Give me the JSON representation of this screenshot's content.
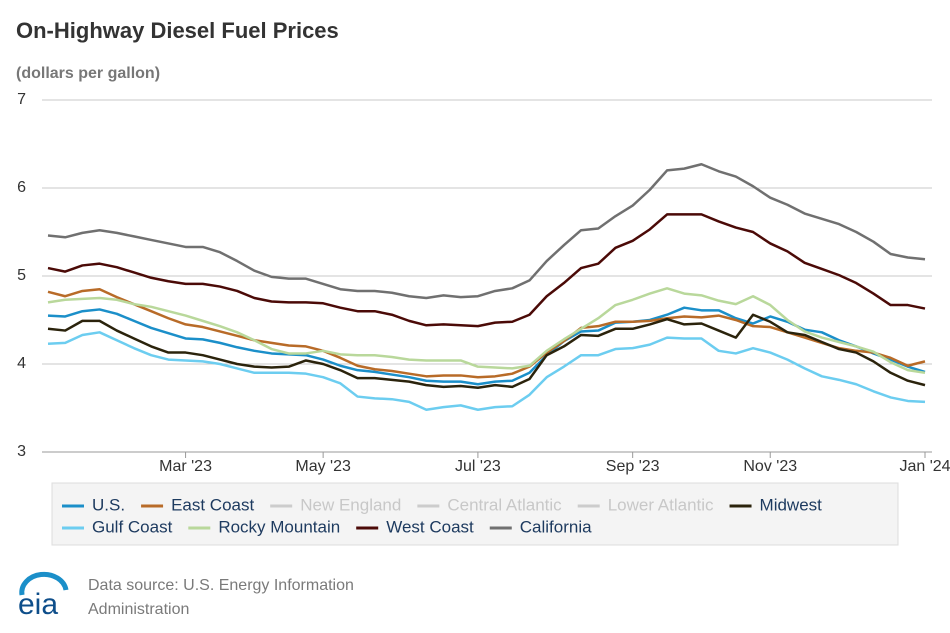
{
  "chart_data": {
    "type": "line",
    "title": "On-Highway Diesel Fuel Prices",
    "subtitle": "(dollars per gallon)",
    "source": "Data source: U.S. Energy Information Administration",
    "logo": "eia",
    "categories": [
      null,
      null,
      null,
      null,
      null,
      null,
      null,
      null,
      "Mar '23",
      null,
      null,
      null,
      null,
      null,
      null,
      null,
      "May '23",
      null,
      null,
      null,
      null,
      null,
      null,
      null,
      null,
      "Jul '23",
      null,
      null,
      null,
      null,
      null,
      null,
      null,
      null,
      "Sep '23",
      null,
      null,
      null,
      null,
      null,
      null,
      null,
      "Nov '23",
      null,
      null,
      null,
      null,
      null,
      null,
      null,
      null,
      "Jan '24"
    ],
    "ylim": [
      3,
      7
    ],
    "yticks": [
      3,
      4,
      5,
      6,
      7
    ],
    "grid": true,
    "series": [
      {
        "name": "U.S.",
        "color": "#1b8fc9",
        "values": [
          4.55,
          4.54,
          4.6,
          4.62,
          4.57,
          4.49,
          4.41,
          4.35,
          4.29,
          4.28,
          4.24,
          4.19,
          4.15,
          4.12,
          4.11,
          4.1,
          4.05,
          3.98,
          3.93,
          3.91,
          3.88,
          3.85,
          3.81,
          3.8,
          3.8,
          3.77,
          3.8,
          3.81,
          3.9,
          4.1,
          4.26,
          4.37,
          4.38,
          4.47,
          4.48,
          4.5,
          4.56,
          4.64,
          4.61,
          4.61,
          4.52,
          4.46,
          4.54,
          4.48,
          4.39,
          4.36,
          4.27,
          4.2,
          4.12,
          4.05,
          3.97,
          3.91
        ]
      },
      {
        "name": "East Coast",
        "color": "#b86b28",
        "values": [
          4.82,
          4.77,
          4.83,
          4.85,
          4.76,
          4.68,
          4.6,
          4.52,
          4.45,
          4.42,
          4.37,
          4.32,
          4.27,
          4.24,
          4.21,
          4.2,
          4.15,
          4.07,
          3.98,
          3.94,
          3.92,
          3.89,
          3.86,
          3.87,
          3.87,
          3.85,
          3.86,
          3.89,
          3.97,
          4.13,
          4.26,
          4.41,
          4.43,
          4.48,
          4.48,
          4.49,
          4.52,
          4.54,
          4.53,
          4.55,
          4.5,
          4.43,
          4.42,
          4.36,
          4.3,
          4.24,
          4.18,
          4.15,
          4.13,
          4.07,
          3.98,
          4.03
        ]
      },
      {
        "name": "New England",
        "color": "#cccccc",
        "hidden": true
      },
      {
        "name": "Central Atlantic",
        "color": "#cccccc",
        "hidden": true
      },
      {
        "name": "Lower Atlantic",
        "color": "#cccccc",
        "hidden": true
      },
      {
        "name": "Midwest",
        "color": "#2b230c",
        "values": [
          4.4,
          4.38,
          4.49,
          4.49,
          4.38,
          4.29,
          4.2,
          4.13,
          4.13,
          4.1,
          4.05,
          4.0,
          3.97,
          3.96,
          3.97,
          4.04,
          4.0,
          3.93,
          3.84,
          3.84,
          3.82,
          3.8,
          3.76,
          3.74,
          3.75,
          3.73,
          3.76,
          3.74,
          3.83,
          4.1,
          4.2,
          4.33,
          4.32,
          4.4,
          4.4,
          4.45,
          4.51,
          4.45,
          4.46,
          4.38,
          4.3,
          4.56,
          4.48,
          4.36,
          4.33,
          4.25,
          4.17,
          4.13,
          4.03,
          3.9,
          3.81,
          3.76
        ]
      },
      {
        "name": "Gulf Coast",
        "color": "#6ccdf0",
        "values": [
          4.23,
          4.24,
          4.33,
          4.36,
          4.27,
          4.18,
          4.1,
          4.05,
          4.04,
          4.03,
          4.0,
          3.95,
          3.9,
          3.9,
          3.9,
          3.89,
          3.85,
          3.78,
          3.63,
          3.61,
          3.6,
          3.57,
          3.48,
          3.51,
          3.53,
          3.48,
          3.51,
          3.52,
          3.65,
          3.85,
          3.97,
          4.1,
          4.1,
          4.17,
          4.18,
          4.22,
          4.3,
          4.29,
          4.29,
          4.15,
          4.12,
          4.18,
          4.13,
          4.05,
          3.95,
          3.86,
          3.82,
          3.77,
          3.69,
          3.62,
          3.58,
          3.57
        ]
      },
      {
        "name": "Rocky Mountain",
        "color": "#b9d89b",
        "values": [
          4.7,
          4.73,
          4.74,
          4.75,
          4.73,
          4.68,
          4.65,
          4.6,
          4.55,
          4.49,
          4.43,
          4.36,
          4.27,
          4.17,
          4.12,
          4.12,
          4.15,
          4.11,
          4.1,
          4.1,
          4.08,
          4.05,
          4.04,
          4.04,
          4.04,
          3.97,
          3.96,
          3.95,
          3.98,
          4.15,
          4.28,
          4.4,
          4.52,
          4.67,
          4.73,
          4.8,
          4.86,
          4.8,
          4.78,
          4.72,
          4.68,
          4.77,
          4.67,
          4.5,
          4.37,
          4.3,
          4.25,
          4.2,
          4.14,
          4.02,
          3.93,
          3.9
        ]
      },
      {
        "name": "West Coast",
        "color": "#4b0a07",
        "values": [
          5.09,
          5.05,
          5.12,
          5.14,
          5.1,
          5.04,
          4.98,
          4.94,
          4.91,
          4.91,
          4.88,
          4.83,
          4.75,
          4.71,
          4.7,
          4.7,
          4.69,
          4.64,
          4.6,
          4.6,
          4.56,
          4.49,
          4.44,
          4.45,
          4.44,
          4.43,
          4.47,
          4.48,
          4.56,
          4.77,
          4.92,
          5.09,
          5.14,
          5.32,
          5.4,
          5.53,
          5.7,
          5.7,
          5.7,
          5.62,
          5.55,
          5.5,
          5.37,
          5.28,
          5.15,
          5.08,
          5.01,
          4.92,
          4.8,
          4.67,
          4.67,
          4.63
        ]
      },
      {
        "name": "California",
        "color": "#707070",
        "values": [
          5.46,
          5.44,
          5.49,
          5.52,
          5.49,
          5.45,
          5.41,
          5.37,
          5.33,
          5.33,
          5.27,
          5.17,
          5.06,
          4.99,
          4.97,
          4.97,
          4.91,
          4.85,
          4.83,
          4.83,
          4.81,
          4.77,
          4.75,
          4.78,
          4.76,
          4.77,
          4.83,
          4.86,
          4.95,
          5.17,
          5.35,
          5.52,
          5.54,
          5.68,
          5.8,
          5.98,
          6.2,
          6.22,
          6.27,
          6.19,
          6.13,
          6.02,
          5.89,
          5.81,
          5.71,
          5.65,
          5.59,
          5.5,
          5.39,
          5.25,
          5.21,
          5.19
        ]
      }
    ]
  }
}
